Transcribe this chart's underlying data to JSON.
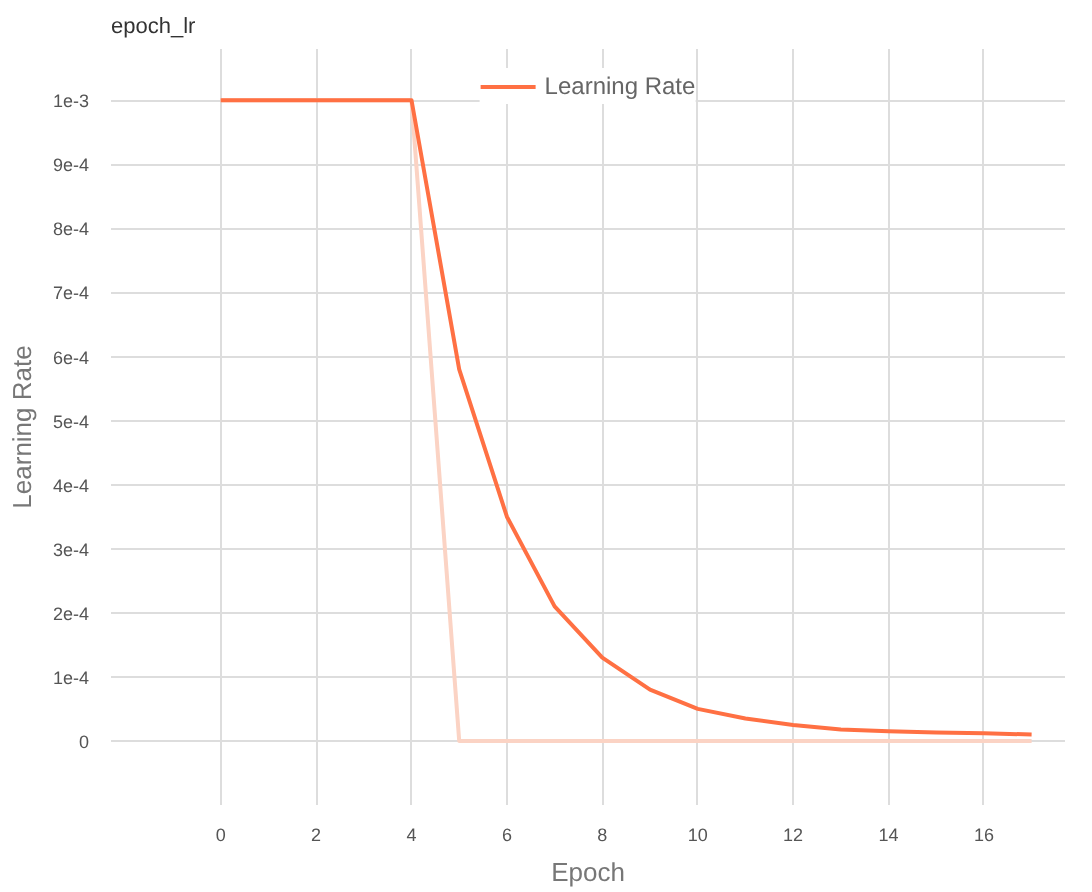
{
  "chart_data": {
    "type": "line",
    "title": "epoch_lr",
    "xlabel": "Epoch",
    "ylabel": "Learning Rate",
    "x": [
      0,
      1,
      2,
      3,
      4,
      5,
      6,
      7,
      8,
      9,
      10,
      11,
      12,
      13,
      14,
      15,
      16,
      17
    ],
    "series": [
      {
        "color": "#fbd3c4",
        "values": [
          0.001,
          0.001,
          0.001,
          0.001,
          0.001,
          0,
          0,
          0,
          0,
          0,
          0,
          0,
          0,
          0,
          0,
          0,
          0,
          0
        ]
      },
      {
        "name": "Learning Rate",
        "color": "#ff7043",
        "values": [
          0.001,
          0.001,
          0.001,
          0.001,
          0.001,
          0.00058,
          0.00035,
          0.00021,
          0.00013,
          8e-05,
          5e-05,
          3.5e-05,
          2.5e-05,
          1.8e-05,
          1.5e-05,
          1.3e-05,
          1.2e-05,
          1e-05
        ]
      }
    ],
    "xlim": [
      -2.3,
      17.7
    ],
    "ylim": [
      -0.0001,
      0.00108
    ],
    "xticks": [
      0,
      2,
      4,
      6,
      8,
      10,
      12,
      14,
      16
    ],
    "yticks": [
      0,
      {
        "value": 0.0001,
        "label": "1e-4"
      },
      {
        "value": 0.0002,
        "label": "2e-4"
      },
      {
        "value": 0.0003,
        "label": "3e-4"
      },
      {
        "value": 0.0004,
        "label": "4e-4"
      },
      {
        "value": 0.0005,
        "label": "5e-4"
      },
      {
        "value": 0.0006,
        "label": "6e-4"
      },
      {
        "value": 0.0007,
        "label": "7e-4"
      },
      {
        "value": 0.0008,
        "label": "8e-4"
      },
      {
        "value": 0.0009,
        "label": "9e-4"
      },
      {
        "value": 0.001,
        "label": "1e-3"
      }
    ],
    "grid": true,
    "legend": "top",
    "marker": "none",
    "line_style": "solid"
  }
}
